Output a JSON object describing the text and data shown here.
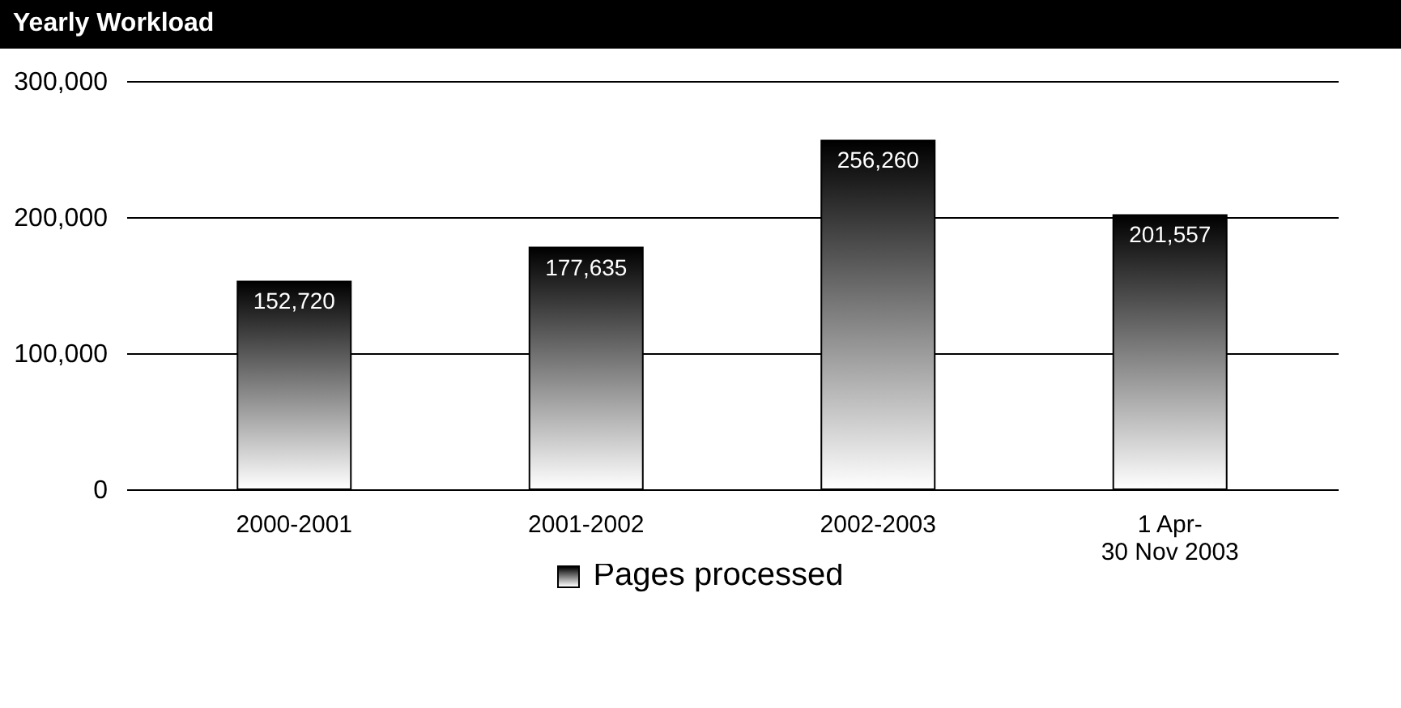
{
  "chart_data": {
    "type": "bar",
    "title": "Yearly Workload",
    "categories": [
      "2000-2001",
      "2001-2002",
      "2002-2003",
      "1 Apr-\n30 Nov 2003"
    ],
    "series": [
      {
        "name": "Pages processed",
        "color": "#000000",
        "values": [
          152720,
          177635,
          256260,
          201557
        ],
        "value_labels": [
          "152,720",
          "177,635",
          "256,260",
          "201,557"
        ]
      }
    ],
    "ylim": [
      0,
      300000
    ],
    "yticks": [
      {
        "value": 0,
        "label": "0"
      },
      {
        "value": 100000,
        "label": "100,000"
      },
      {
        "value": 200000,
        "label": "200,000"
      },
      {
        "value": 300000,
        "label": "300,000"
      }
    ],
    "grid": "y",
    "legend": "bottom"
  }
}
